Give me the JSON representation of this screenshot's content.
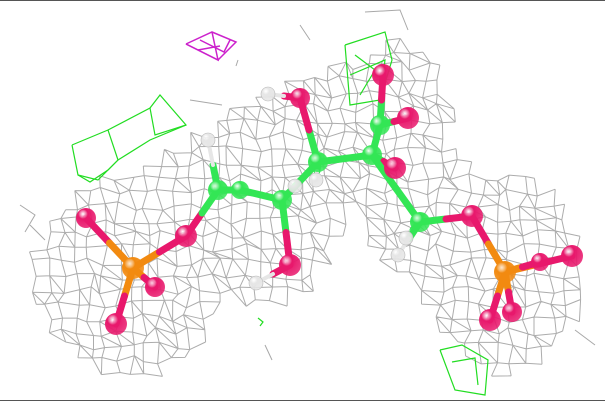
{
  "scene": {
    "background": "#ffffff",
    "mesh_color": "#a8a8a8",
    "positive_density_color": "#22dd22",
    "negative_density_color": "#cc22cc",
    "atom_colors": {
      "carbon": "#33e655",
      "oxygen": "#e8186c",
      "phosphorus": "#f28a10",
      "hydrogen": "#e6e6e6"
    },
    "icons": [
      "electron-density-mesh",
      "molecule-model",
      "difference-density-positive",
      "difference-density-negative"
    ]
  }
}
